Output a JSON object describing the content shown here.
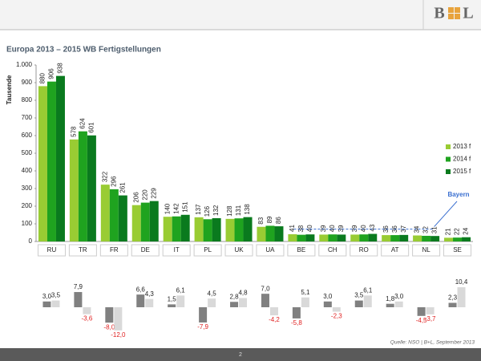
{
  "logo": [
    "B",
    "L"
  ],
  "source": "Quelle: NSO | B+L, September 2013",
  "page_number": "2",
  "chart_data": [
    {
      "type": "bar",
      "title": "Europa 2013 – 2015 WB Fertigstellungen",
      "ylabel": "Tausende",
      "categories": [
        "RU",
        "TR",
        "FR",
        "DE",
        "IT",
        "PL",
        "UK",
        "UA",
        "BE",
        "CH",
        "RO",
        "AT",
        "NL",
        "SE"
      ],
      "series": [
        {
          "name": "2013 f",
          "color": "#99cc33",
          "values": [
            880,
            578,
            322,
            206,
            140,
            137,
            128,
            83,
            41,
            39,
            39,
            36,
            34,
            21
          ]
        },
        {
          "name": "2014 f",
          "color": "#1fa31f",
          "values": [
            906,
            624,
            296,
            220,
            142,
            126,
            131,
            89,
            38,
            40,
            40,
            36,
            32,
            22
          ]
        },
        {
          "name": "2015 f",
          "color": "#0a7a1e",
          "values": [
            938,
            601,
            261,
            229,
            151,
            132,
            138,
            86,
            40,
            39,
            43,
            37,
            31,
            24
          ]
        }
      ],
      "ylim": [
        0,
        1000
      ],
      "yticks": [
        0,
        100,
        200,
        300,
        400,
        500,
        600,
        700,
        800,
        900,
        {
          "value": 1000,
          "label": "1.000"
        }
      ],
      "grid": false,
      "legend": "right",
      "annotation": {
        "text": "Bayern",
        "value": 70,
        "color": "#3a6fd0"
      }
    },
    {
      "type": "bar",
      "series": [
        {
          "color": "#808080",
          "values": [
            3.0,
            7.9,
            -8.0,
            6.6,
            1.5,
            -7.9,
            2.8,
            7.0,
            -5.8,
            3.0,
            3.5,
            1.8,
            -4.5,
            2.3
          ],
          "value_labels": [
            "3,0",
            "7,9",
            "-8,0",
            "6,6",
            "1,5",
            "-7,9",
            "2,8",
            "7,0",
            "-5,8",
            "3,0",
            "3,5",
            "1,8",
            "-4,5",
            "2,3"
          ]
        },
        {
          "color": "#d9d9d9",
          "values": [
            3.5,
            -3.6,
            -12.0,
            4.3,
            6.1,
            4.5,
            4.8,
            -4.2,
            5.1,
            -2.3,
            6.1,
            3.0,
            -3.7,
            10.4
          ],
          "value_labels": [
            "3,5",
            "-3,6",
            "-12,0",
            "4,3",
            "6,1",
            "4,5",
            "4,8",
            "-4,2",
            "5,1",
            "-2,3",
            "6,1",
            "3,0",
            "-3,7",
            "10,4"
          ]
        }
      ],
      "negative_color": "#e02020"
    }
  ]
}
